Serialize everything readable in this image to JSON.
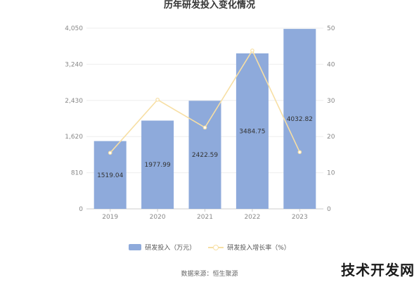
{
  "title": "历年研发投入变化情况",
  "source": "数据来源：恒生聚源",
  "watermark": "技术开发网",
  "colors": {
    "bar": "#8eaadb",
    "line": "#f7dfa4",
    "grid": "#eeeeee",
    "axis": "#cccccc"
  },
  "chart_data": {
    "type": "bar",
    "categories": [
      "2019",
      "2020",
      "2021",
      "2022",
      "2023"
    ],
    "series": [
      {
        "name": "研发投入（万元）",
        "type": "bar",
        "axis": "left",
        "values": [
          1519.04,
          1977.99,
          2422.59,
          3484.75,
          4032.82
        ]
      },
      {
        "name": "研发投入增长率（%）",
        "type": "line",
        "axis": "right",
        "values": [
          15.5,
          30.2,
          22.5,
          43.8,
          15.7
        ]
      }
    ],
    "data_labels": [
      "1519.04",
      "1977.99",
      "2422.59",
      "3484.75",
      "4032.82"
    ],
    "y_left": {
      "ticks": [
        "0",
        "810",
        "1,620",
        "2,430",
        "3,240",
        "4,050"
      ],
      "lim": [
        0,
        4050
      ]
    },
    "y_right": {
      "ticks": [
        "0",
        "10",
        "20",
        "30",
        "40",
        "50"
      ],
      "lim": [
        0,
        50
      ]
    },
    "grid": true,
    "legend_position": "bottom"
  }
}
